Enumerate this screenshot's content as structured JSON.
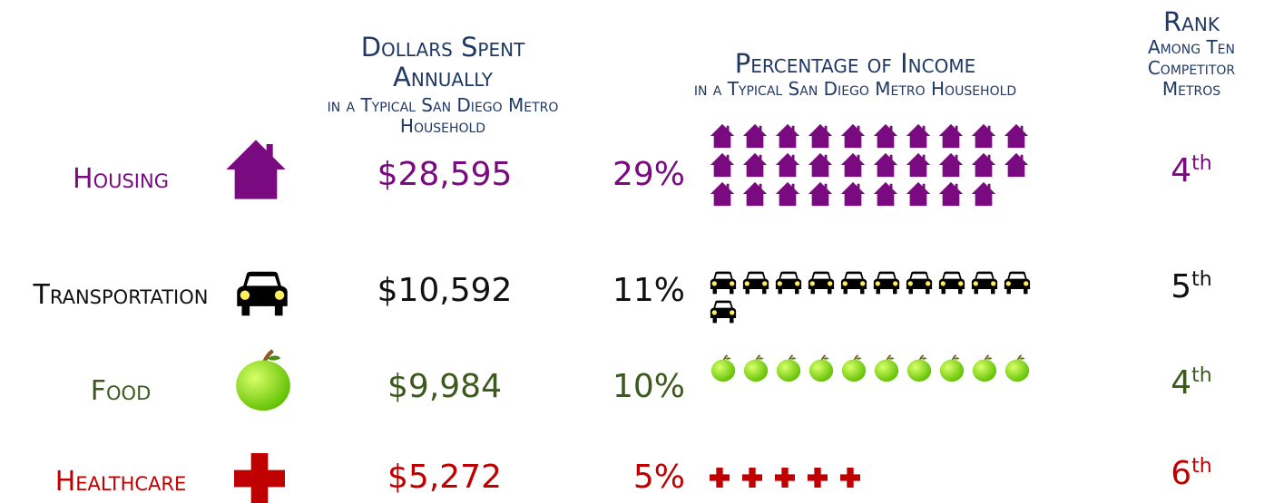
{
  "header": {
    "dollars_title": "Dollars Spent Annually",
    "dollars_subtitle": "in a Typical San Diego Metro Household",
    "percent_title": "Percentage of Income",
    "percent_subtitle": "in a Typical San Diego Metro Household",
    "rank_title": "Rank",
    "rank_subtitle": "Among Ten Competitor Metros"
  },
  "rows": [
    {
      "label": "Housing",
      "dollars": "$28,595",
      "percent": 29,
      "percent_label": "29%",
      "rank": "4",
      "rank_suffix": "th",
      "color": "#7a0a80"
    },
    {
      "label": "Transportation",
      "dollars": "$10,592",
      "percent": 11,
      "percent_label": "11%",
      "rank": "5",
      "rank_suffix": "th",
      "color": "#111111"
    },
    {
      "label": "Food",
      "dollars": "$9,984",
      "percent": 10,
      "percent_label": "10%",
      "rank": "4",
      "rank_suffix": "th",
      "color": "#3d5a1e"
    },
    {
      "label": "Healthcare",
      "dollars": "$5,272",
      "percent": 5,
      "percent_label": "5%",
      "rank": "6",
      "rank_suffix": "th",
      "color": "#c00000"
    }
  ]
}
